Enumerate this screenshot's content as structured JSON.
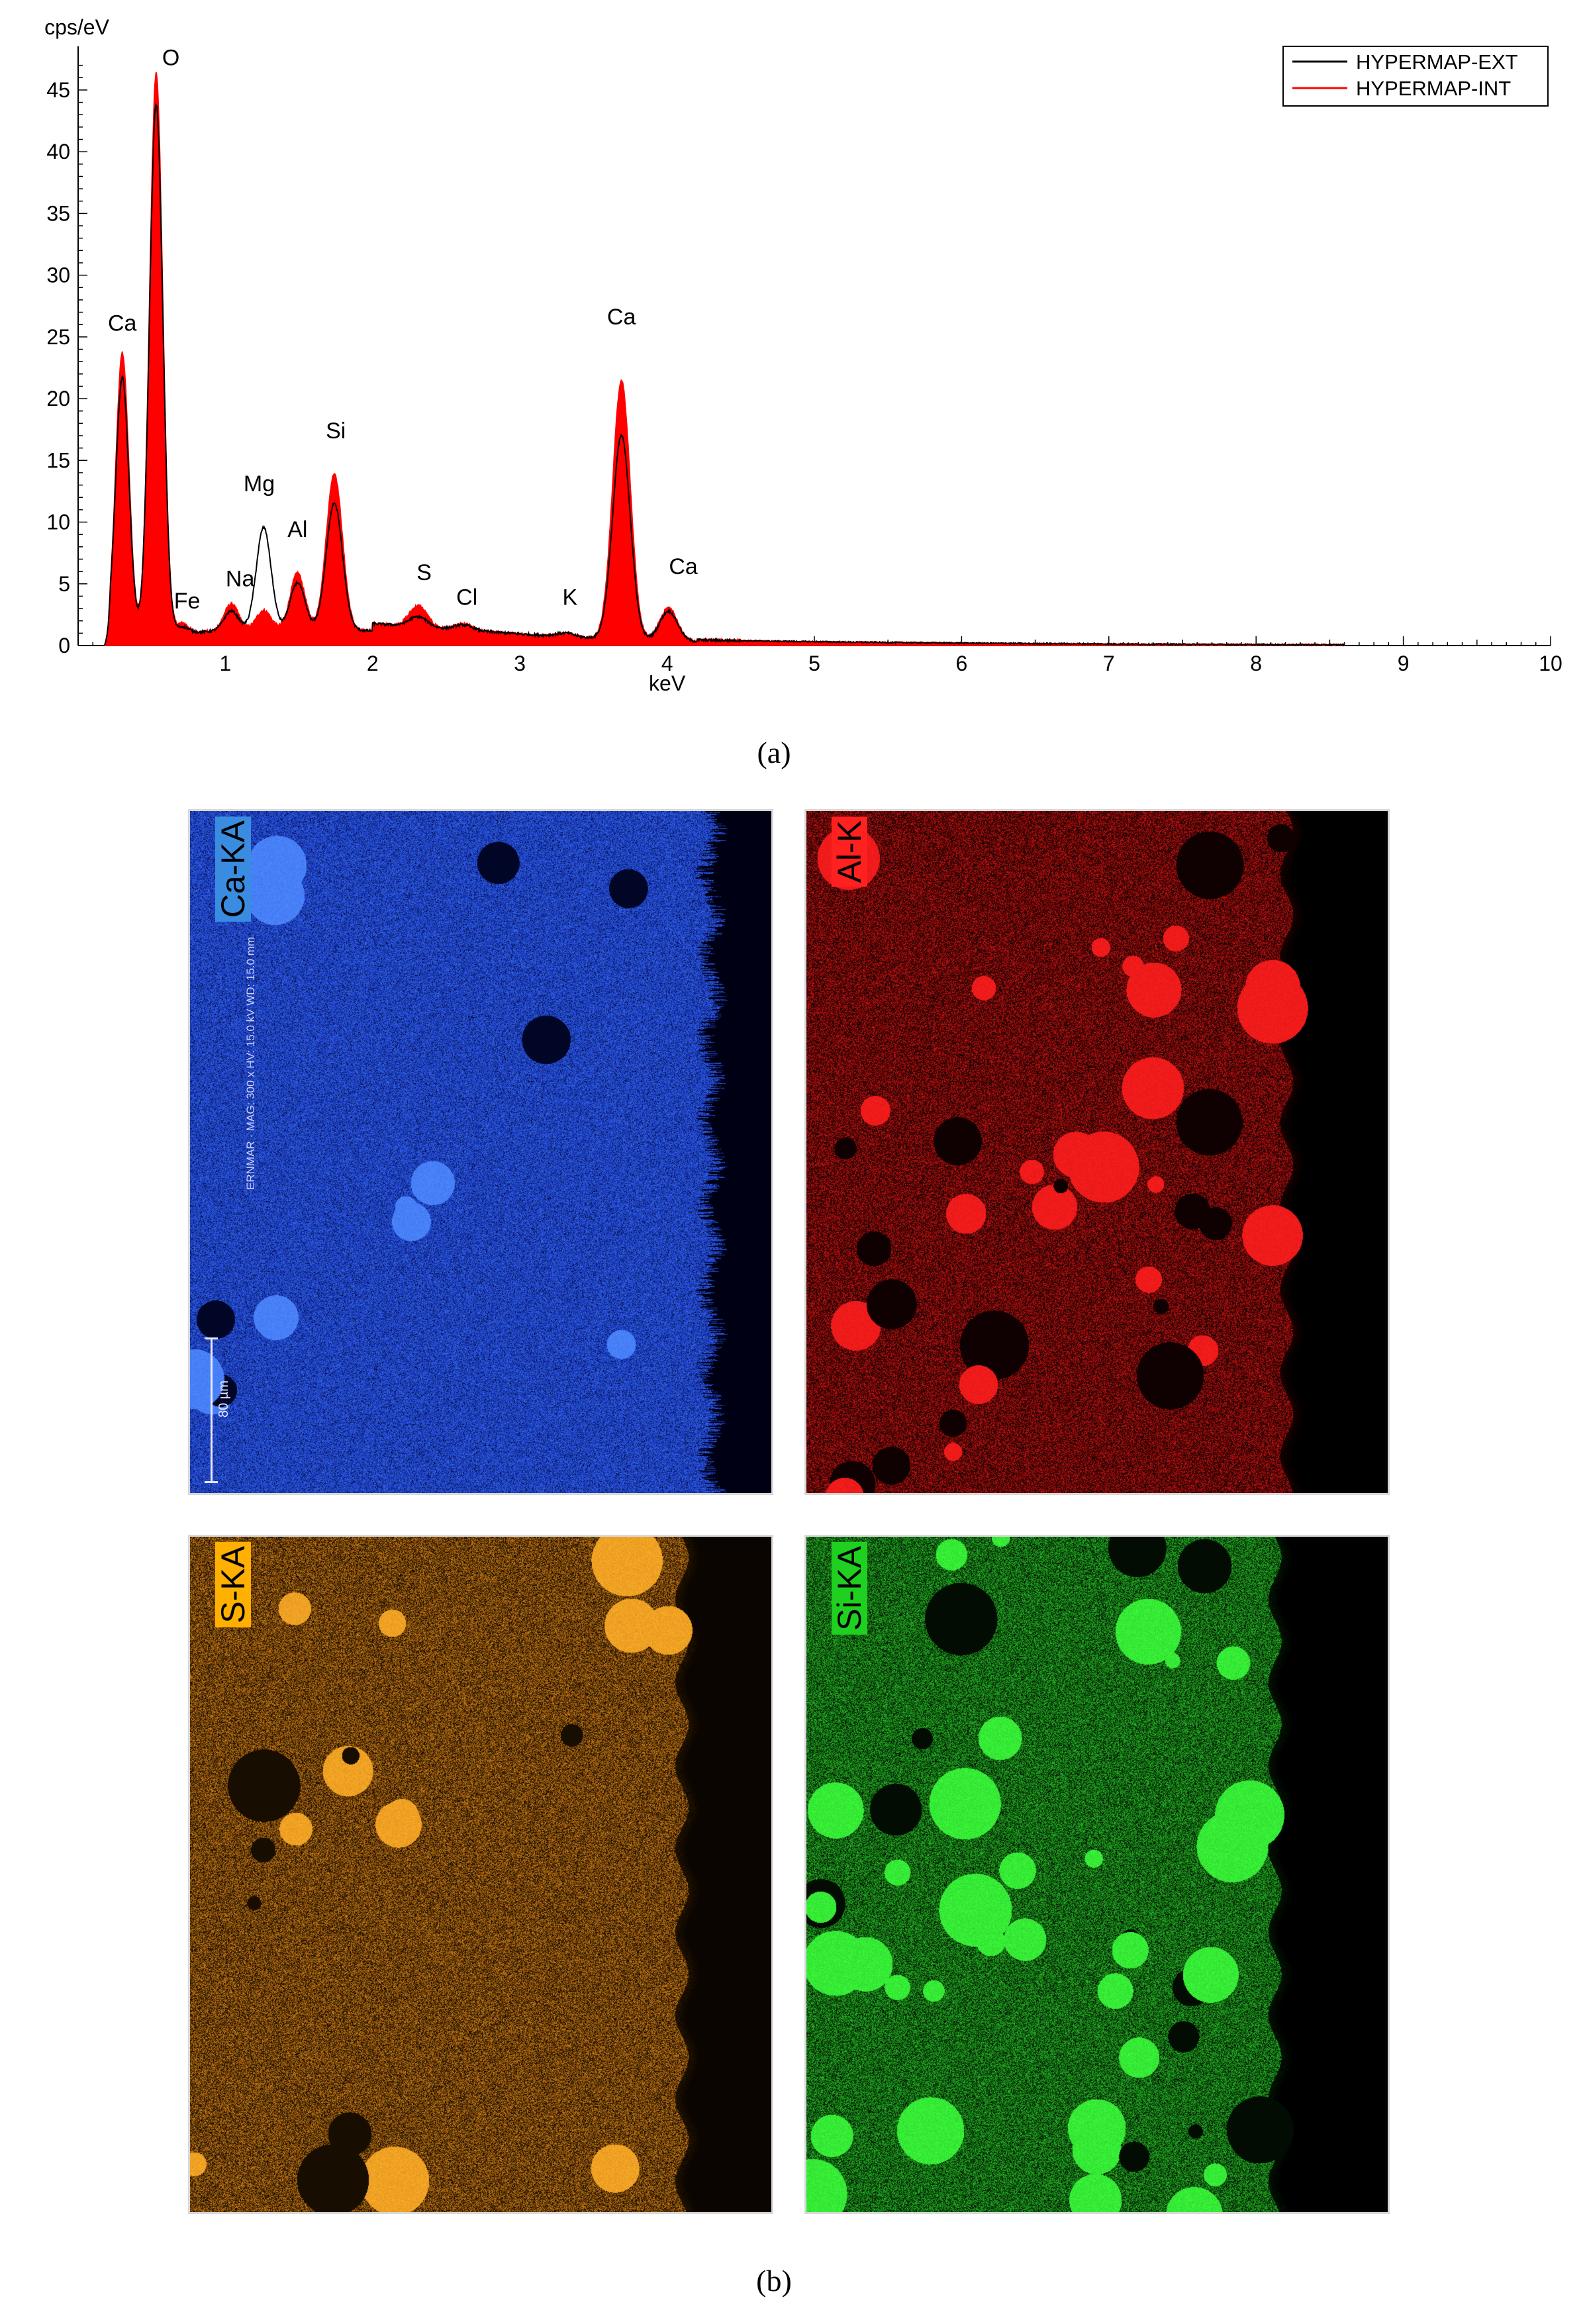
{
  "chart_data": {
    "type": "line",
    "y_unit_label": "cps/eV",
    "xlabel": "keV",
    "xlim": [
      0,
      10
    ],
    "ylim": [
      0,
      48
    ],
    "x_ticks": [
      1,
      2,
      3,
      4,
      5,
      6,
      7,
      8,
      9,
      10
    ],
    "y_ticks": [
      0,
      5,
      10,
      15,
      20,
      25,
      30,
      35,
      40,
      45
    ],
    "legend_position": "top-right",
    "series": [
      {
        "name": "HYPERMAP-EXT",
        "color": "#000000",
        "peaks": [
          {
            "element": "Ca",
            "x": 0.3,
            "y": 21.0,
            "w": 0.045
          },
          {
            "element": "O",
            "x": 0.53,
            "y": 43.0,
            "w": 0.045
          },
          {
            "element": "Fe",
            "x": 0.71,
            "y": 0.5,
            "w": 0.04
          },
          {
            "element": "Na",
            "x": 1.04,
            "y": 1.6,
            "w": 0.05
          },
          {
            "element": "Mg",
            "x": 1.26,
            "y": 8.3,
            "w": 0.05
          },
          {
            "element": "Al",
            "x": 1.49,
            "y": 3.8,
            "w": 0.05
          },
          {
            "element": "Si",
            "x": 1.74,
            "y": 10.3,
            "w": 0.055
          },
          {
            "element": "S",
            "x": 2.31,
            "y": 0.8,
            "w": 0.06
          },
          {
            "element": "Cl",
            "x": 2.62,
            "y": 0.4,
            "w": 0.06
          },
          {
            "element": "K",
            "x": 3.31,
            "y": 0.3,
            "w": 0.06
          },
          {
            "element": "Ca",
            "x": 3.69,
            "y": 16.5,
            "w": 0.06
          },
          {
            "element": "Ca",
            "x": 4.01,
            "y": 2.4,
            "w": 0.06
          }
        ]
      },
      {
        "name": "HYPERMAP-INT",
        "color": "#ff0000",
        "peaks": [
          {
            "element": "Ca",
            "x": 0.3,
            "y": 23.0,
            "w": 0.045
          },
          {
            "element": "O",
            "x": 0.53,
            "y": 45.5,
            "w": 0.045
          },
          {
            "element": "Fe",
            "x": 0.71,
            "y": 0.8,
            "w": 0.04
          },
          {
            "element": "Na",
            "x": 1.04,
            "y": 2.2,
            "w": 0.05
          },
          {
            "element": "Mg",
            "x": 1.26,
            "y": 1.6,
            "w": 0.05
          },
          {
            "element": "Al",
            "x": 1.49,
            "y": 4.6,
            "w": 0.05
          },
          {
            "element": "Si",
            "x": 1.74,
            "y": 12.7,
            "w": 0.055
          },
          {
            "element": "S",
            "x": 2.31,
            "y": 1.7,
            "w": 0.06
          },
          {
            "element": "Cl",
            "x": 2.62,
            "y": 0.5,
            "w": 0.06
          },
          {
            "element": "K",
            "x": 3.31,
            "y": 0.3,
            "w": 0.06
          },
          {
            "element": "Ca",
            "x": 3.69,
            "y": 21.0,
            "w": 0.06
          },
          {
            "element": "Ca",
            "x": 4.01,
            "y": 2.7,
            "w": 0.06
          }
        ]
      }
    ],
    "peak_labels": [
      {
        "text": "Ca",
        "x": 0.3,
        "y": 25.5
      },
      {
        "text": "O",
        "x": 0.63,
        "y": 47.0
      },
      {
        "text": "Fe",
        "x": 0.74,
        "y": 3.0
      },
      {
        "text": "Na",
        "x": 1.1,
        "y": 4.8
      },
      {
        "text": "Mg",
        "x": 1.23,
        "y": 12.5
      },
      {
        "text": "Al",
        "x": 1.49,
        "y": 8.8
      },
      {
        "text": "Si",
        "x": 1.75,
        "y": 16.8
      },
      {
        "text": "S",
        "x": 2.35,
        "y": 5.3
      },
      {
        "text": "Cl",
        "x": 2.64,
        "y": 3.3
      },
      {
        "text": "K",
        "x": 3.34,
        "y": 3.3
      },
      {
        "text": "Ca",
        "x": 3.69,
        "y": 26.0
      },
      {
        "text": "Ca",
        "x": 4.11,
        "y": 5.8
      }
    ]
  },
  "figure_labels": {
    "a": "(a)",
    "b": "(b)"
  },
  "maps": [
    {
      "id": "ca",
      "label": "Ca-KA",
      "color": "#1a55ff",
      "tag_bg": "#3a8ce0",
      "scale_text": "80 µm",
      "meta_text": "ERNMAR · MAG: 300 x HV: 15.0 kV WD: 15.0 mm"
    },
    {
      "id": "al",
      "label": "Al-K",
      "color": "#ff1a1a",
      "tag_bg": "#ff2020"
    },
    {
      "id": "s",
      "label": "S-KA",
      "color": "#ff9a10",
      "tag_bg": "#ffb000"
    },
    {
      "id": "si",
      "label": "Si-KA",
      "color": "#22dd22",
      "tag_bg": "#20d020"
    }
  ]
}
